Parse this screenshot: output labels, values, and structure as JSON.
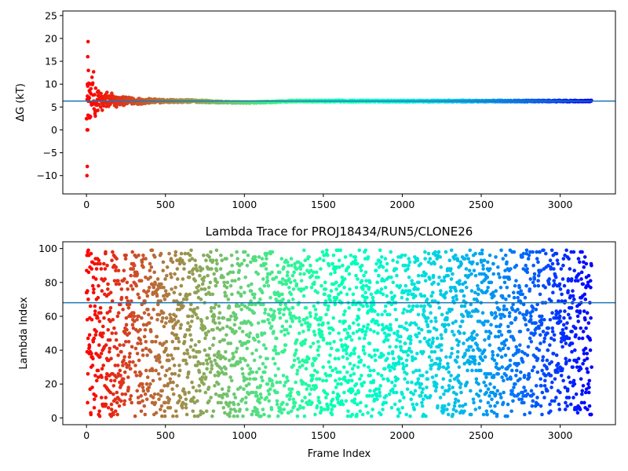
{
  "chart_data": [
    {
      "type": "scatter",
      "title": "",
      "xlabel": "",
      "ylabel": "ΔG (kT)",
      "xlim": [
        -150,
        3350
      ],
      "ylim": [
        -14,
        26
      ],
      "xticks": [
        0,
        500,
        1000,
        1500,
        2000,
        2500,
        3000
      ],
      "yticks": [
        -10,
        -5,
        0,
        5,
        10,
        15,
        20,
        25
      ],
      "hline": 6.3,
      "hline_color": "#1f77b4",
      "colormap": "rainbow (reversed: red at frame 0, violet at last frame)",
      "n_frames": 3200,
      "series_description": "Cumulative free energy estimate per frame; early frames scatter widely (about -10 to 19 kT), converging to about 6.3 kT after about 600 frames.",
      "early_points": [
        {
          "x": 3,
          "y": -10
        },
        {
          "x": 5,
          "y": -8
        },
        {
          "x": 4,
          "y": 0
        },
        {
          "x": 8,
          "y": 0
        },
        {
          "x": 6,
          "y": 10
        },
        {
          "x": 8,
          "y": 16
        },
        {
          "x": 10,
          "y": 19.3
        },
        {
          "x": 12,
          "y": 13
        },
        {
          "x": 15,
          "y": 10.2
        },
        {
          "x": 18,
          "y": 7
        },
        {
          "x": 22,
          "y": 3
        },
        {
          "x": 28,
          "y": 9
        },
        {
          "x": 35,
          "y": 11.5
        },
        {
          "x": 45,
          "y": 12.7
        },
        {
          "x": 55,
          "y": 4
        },
        {
          "x": 75,
          "y": 8.5
        },
        {
          "x": 100,
          "y": 4.3
        },
        {
          "x": 130,
          "y": 8.2
        },
        {
          "x": 160,
          "y": 8
        },
        {
          "x": 190,
          "y": 5
        }
      ],
      "converged_value": 6.3
    },
    {
      "type": "scatter",
      "title": "Lambda Trace for PROJ18434/RUN5/CLONE26",
      "xlabel": "Frame Index",
      "ylabel": "Lambda Index",
      "xlim": [
        -150,
        3350
      ],
      "ylim": [
        -4,
        104
      ],
      "xticks": [
        0,
        500,
        1000,
        1500,
        2000,
        2500,
        3000
      ],
      "yticks": [
        0,
        20,
        40,
        60,
        80,
        100
      ],
      "hline": 68,
      "hline_color": "#1f77b4",
      "colormap": "rainbow (reversed: red at frame 0, violet at last frame)",
      "n_frames": 3200,
      "series_description": "Lambda index (1 to 99) visited at each frame; points spread roughly uniformly across the full lambda range throughout the trajectory."
    }
  ]
}
